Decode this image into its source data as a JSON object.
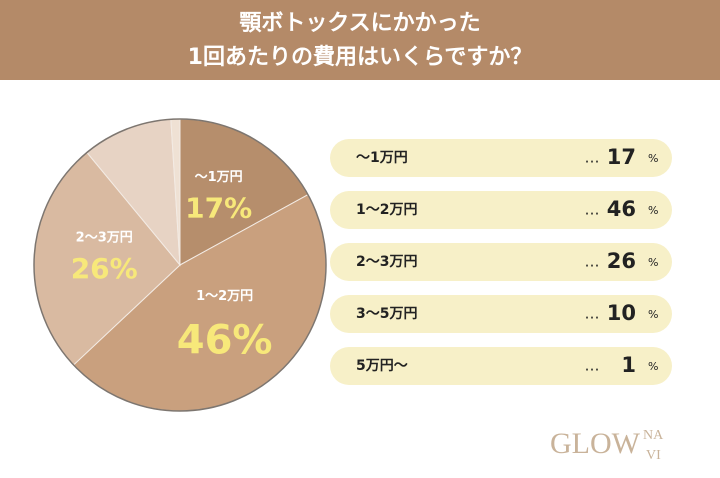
{
  "chart_data": {
    "type": "pie",
    "title": [
      "顎ボトックスにかかった",
      "1回あたりの費用はいくらですか？"
    ],
    "categories": [
      "〜1万円",
      "1〜2万円",
      "2〜3万円",
      "3〜5万円",
      "5万円〜"
    ],
    "values": [
      17,
      46,
      26,
      10,
      1
    ],
    "value_labels": [
      "17%",
      "46%",
      "26%",
      null,
      null
    ],
    "colors": [
      "#b68e6c",
      "#c9a07e",
      "#d9baa1",
      "#e7d3c4",
      "#efe1d4"
    ],
    "leader": "…",
    "unit": "%",
    "brand": "GLOW",
    "brand_sup": "NA",
    "brand_sub": "VI"
  }
}
